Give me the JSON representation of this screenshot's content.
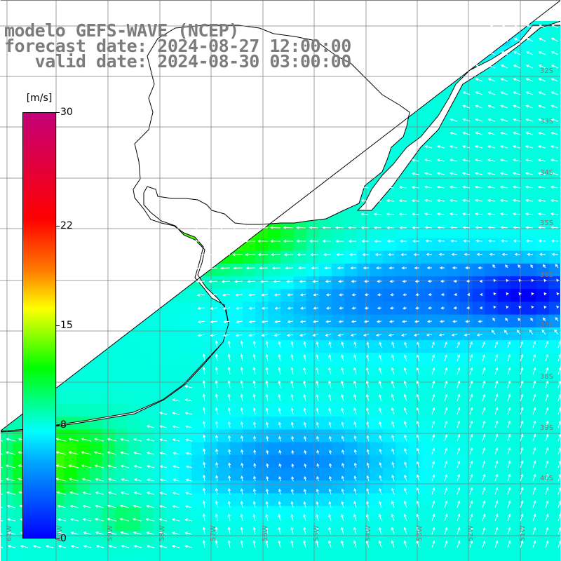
{
  "title": {
    "line1": "modelo GEFS-WAVE (NCEP)",
    "line2": "forecast date: 2024-08-27 12:00:00",
    "line3": "   valid date: 2024-08-30 03:00:00"
  },
  "colorbar": {
    "unit": "[m/s]",
    "min": 0,
    "max": 30,
    "tick_labels": [
      "30",
      "22",
      "15",
      "8",
      "0"
    ],
    "tick_values": [
      30,
      22,
      15,
      8,
      0
    ],
    "colors": [
      "#0000ff",
      "#00a8ff",
      "#00ffff",
      "#00ff00",
      "#ffff00",
      "#ff7a00",
      "#ff0000",
      "#c40078"
    ]
  },
  "map": {
    "lat_labels": [
      "32S",
      "33S",
      "34S",
      "35S",
      "36S",
      "37S",
      "38S",
      "39S",
      "40S"
    ],
    "lon_labels": [
      "61W",
      "60W",
      "59W",
      "58W",
      "57W",
      "56W",
      "55W",
      "54W",
      "53W",
      "52W",
      "51W"
    ],
    "land_color": "#ffffff",
    "grid_color": "#808080",
    "arrow_color": "#ffffff",
    "wind_field": "southerly/southeasterly winds, strongest (~14 m/s) near the Rio de la Plata, weakest (~2 m/s) offshore near 36.5S 52W"
  }
}
